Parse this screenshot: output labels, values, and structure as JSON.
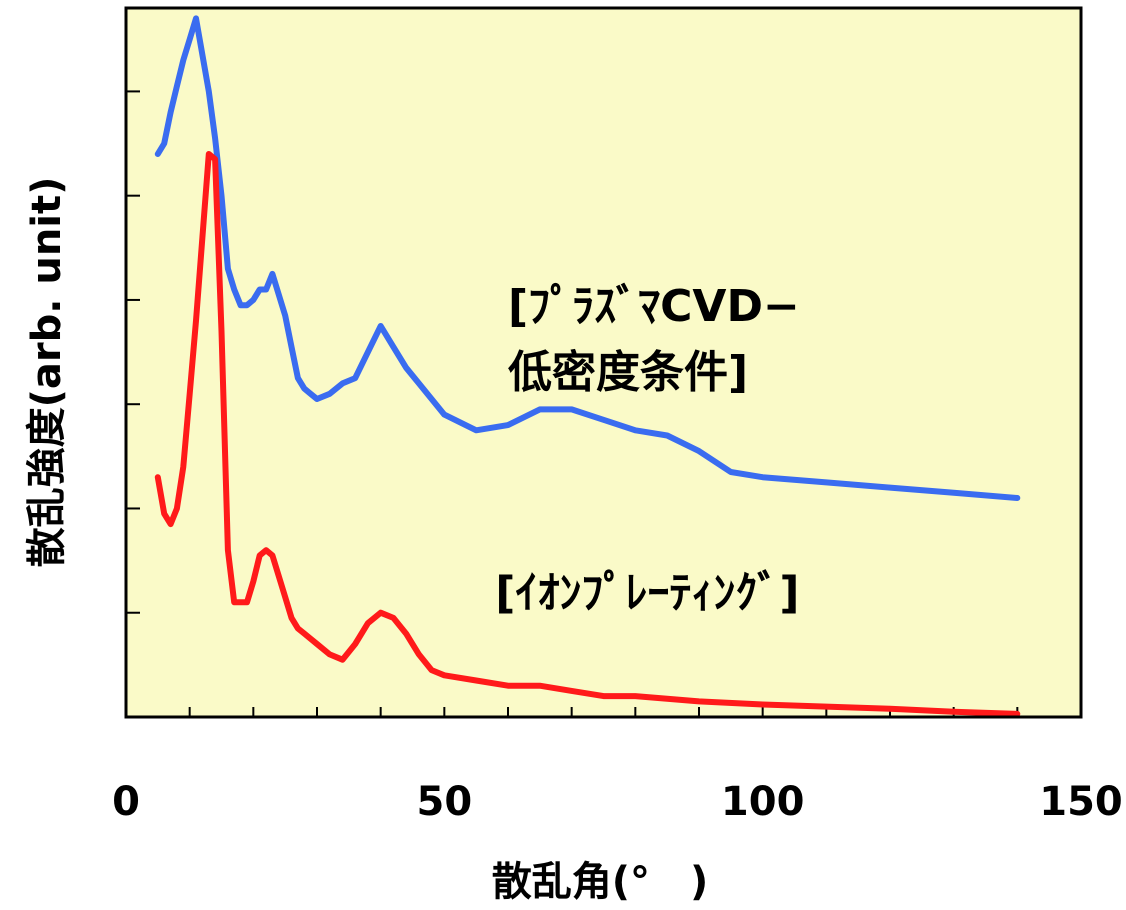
{
  "chart_data": {
    "type": "line",
    "xlabel": "散乱角(°　)",
    "ylabel": "散乱強度(arb. unit)",
    "xlim": [
      0,
      150
    ],
    "ylim": [
      0,
      6.8
    ],
    "x_ticks": [
      0,
      50,
      100,
      150
    ],
    "x_minor_step": 10,
    "y_minor_ticks": [
      1,
      2,
      3,
      4,
      5,
      6
    ],
    "y_tick_labels_shown": false,
    "grid": false,
    "background_color": "#fafac8",
    "annotations": [
      {
        "lines": [
          "[ﾌﾟﾗｽﾞﾏCVD−",
          "低密度条件]"
        ],
        "x": 60,
        "y": 3.8,
        "series": "blue"
      },
      {
        "lines": [
          "[ｲｵﾝﾌﾟﾚｰﾃｨﾝｸﾞ]"
        ],
        "x": 58,
        "y": 1.05,
        "series": "red"
      }
    ],
    "series": [
      {
        "color": "#3a6cf0",
        "x": [
          5,
          6,
          7,
          8,
          9,
          10,
          11,
          12,
          13,
          14,
          15,
          16,
          17,
          18,
          19,
          20,
          21,
          22,
          23,
          24,
          25,
          26,
          27,
          28,
          29,
          30,
          32,
          34,
          36,
          38,
          40,
          42,
          44,
          46,
          48,
          50,
          55,
          60,
          65,
          70,
          75,
          80,
          85,
          90,
          95,
          100,
          110,
          120,
          130,
          140
        ],
        "values": [
          5.4,
          5.5,
          5.8,
          6.05,
          6.3,
          6.5,
          6.7,
          6.35,
          6.0,
          5.55,
          5.0,
          4.3,
          4.1,
          3.95,
          3.95,
          4.0,
          4.1,
          4.1,
          4.25,
          4.05,
          3.85,
          3.55,
          3.25,
          3.15,
          3.1,
          3.05,
          3.1,
          3.2,
          3.25,
          3.5,
          3.75,
          3.55,
          3.35,
          3.2,
          3.05,
          2.9,
          2.75,
          2.8,
          2.95,
          2.95,
          2.85,
          2.75,
          2.7,
          2.55,
          2.35,
          2.3,
          2.25,
          2.2,
          2.15,
          2.1
        ]
      },
      {
        "color": "#ff1a1a",
        "x": [
          5,
          6,
          7,
          8,
          9,
          10,
          11,
          12,
          13,
          14,
          15,
          16,
          17,
          18,
          19,
          20,
          21,
          22,
          23,
          24,
          25,
          26,
          27,
          28,
          30,
          32,
          34,
          36,
          38,
          40,
          42,
          44,
          46,
          48,
          50,
          55,
          60,
          65,
          70,
          75,
          80,
          90,
          100,
          110,
          120,
          130,
          140
        ],
        "values": [
          2.3,
          1.95,
          1.85,
          2.0,
          2.4,
          3.1,
          3.8,
          4.6,
          5.4,
          5.35,
          3.7,
          1.6,
          1.1,
          1.1,
          1.1,
          1.3,
          1.55,
          1.6,
          1.55,
          1.35,
          1.15,
          0.95,
          0.85,
          0.8,
          0.7,
          0.6,
          0.55,
          0.7,
          0.9,
          1.0,
          0.95,
          0.8,
          0.6,
          0.45,
          0.4,
          0.35,
          0.3,
          0.3,
          0.25,
          0.2,
          0.2,
          0.15,
          0.12,
          0.1,
          0.08,
          0.05,
          0.03
        ]
      }
    ]
  }
}
